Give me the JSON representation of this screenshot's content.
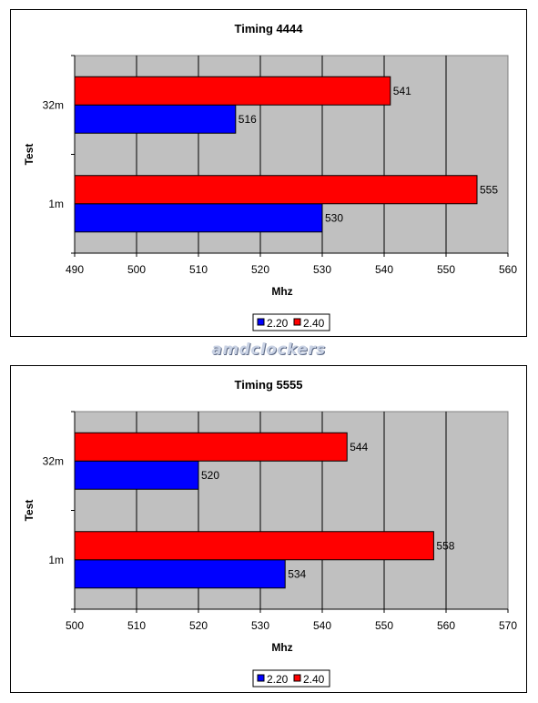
{
  "colors": {
    "s220": "#0000ff",
    "s240": "#ff0000",
    "plot_bg": "#c0c0c0",
    "grid": "#000000"
  },
  "watermark": "amdclockers",
  "chart_data": [
    {
      "type": "bar",
      "orientation": "horizontal",
      "title": "Timing 4444",
      "xlabel": "Mhz",
      "ylabel": "Test",
      "categories": [
        "1m",
        "32m"
      ],
      "series": [
        {
          "name": "2.20",
          "values": [
            530,
            516
          ]
        },
        {
          "name": "2.40",
          "values": [
            555,
            541
          ]
        }
      ],
      "xlim": [
        490,
        560
      ],
      "xticks": [
        490,
        500,
        510,
        520,
        530,
        540,
        550,
        560
      ],
      "grid": true,
      "legend": "bottom"
    },
    {
      "type": "bar",
      "orientation": "horizontal",
      "title": "Timing 5555",
      "xlabel": "Mhz",
      "ylabel": "Test",
      "categories": [
        "1m",
        "32m"
      ],
      "series": [
        {
          "name": "2.20",
          "values": [
            534,
            520
          ]
        },
        {
          "name": "2.40",
          "values": [
            558,
            544
          ]
        }
      ],
      "xlim": [
        500,
        570
      ],
      "xticks": [
        500,
        510,
        520,
        530,
        540,
        550,
        560,
        570
      ],
      "grid": true,
      "legend": "bottom"
    }
  ]
}
